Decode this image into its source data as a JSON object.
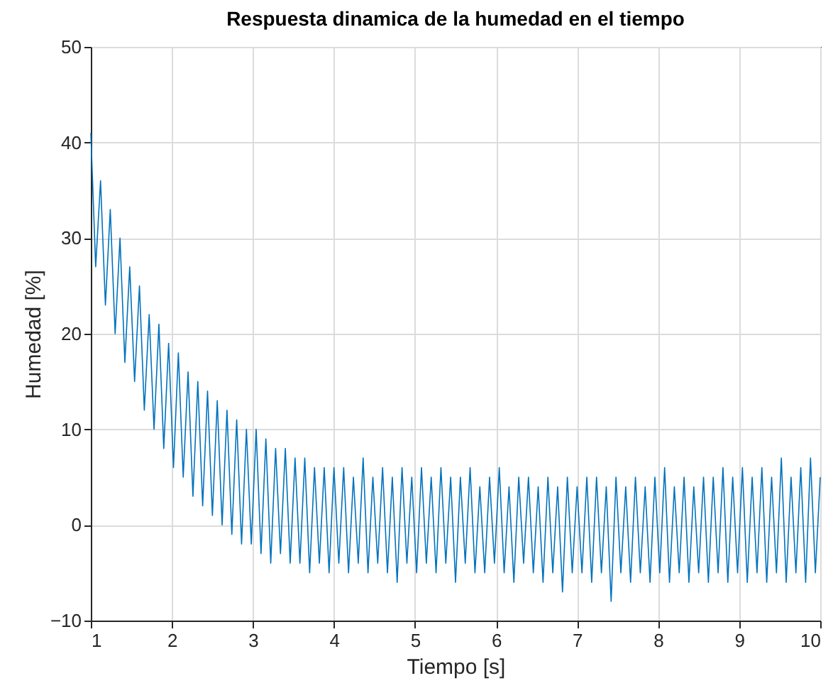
{
  "chart_data": {
    "type": "line",
    "title": "Respuesta dinamica de la humedad en el tiempo",
    "xlabel": "Tiempo [s]",
    "ylabel": "Humedad [%]",
    "color": "#0072bd",
    "grid": true,
    "xlim": [
      1,
      10
    ],
    "ylim": [
      -10,
      50
    ],
    "xticks": [
      1,
      2,
      3,
      4,
      5,
      6,
      7,
      8,
      9,
      10
    ],
    "yticks": [
      -10,
      0,
      10,
      20,
      30,
      40,
      50
    ],
    "x": [
      1.0,
      1.06,
      1.12,
      1.18,
      1.24,
      1.3,
      1.36,
      1.42,
      1.48,
      1.54,
      1.6,
      1.66,
      1.72,
      1.78,
      1.84,
      1.9,
      1.96,
      2.02,
      2.08,
      2.14,
      2.2,
      2.26,
      2.32,
      2.38,
      2.44,
      2.5,
      2.56,
      2.62,
      2.68,
      2.74,
      2.8,
      2.86,
      2.92,
      2.98,
      3.04,
      3.1,
      3.16,
      3.22,
      3.28,
      3.34,
      3.4,
      3.46,
      3.52,
      3.58,
      3.64,
      3.7,
      3.76,
      3.82,
      3.88,
      3.94,
      4.0,
      4.06,
      4.12,
      4.18,
      4.24,
      4.3,
      4.36,
      4.42,
      4.48,
      4.54,
      4.6,
      4.66,
      4.72,
      4.78,
      4.84,
      4.9,
      4.96,
      5.02,
      5.08,
      5.14,
      5.2,
      5.26,
      5.32,
      5.38,
      5.44,
      5.5,
      5.56,
      5.62,
      5.68,
      5.74,
      5.8,
      5.86,
      5.92,
      5.98,
      6.04,
      6.1,
      6.16,
      6.22,
      6.28,
      6.34,
      6.4,
      6.46,
      6.52,
      6.58,
      6.64,
      6.7,
      6.76,
      6.82,
      6.88,
      6.94,
      7.0,
      7.06,
      7.12,
      7.18,
      7.24,
      7.3,
      7.36,
      7.42,
      7.48,
      7.54,
      7.6,
      7.66,
      7.72,
      7.78,
      7.84,
      7.9,
      7.96,
      8.02,
      8.08,
      8.14,
      8.2,
      8.26,
      8.32,
      8.38,
      8.44,
      8.5,
      8.56,
      8.62,
      8.68,
      8.74,
      8.8,
      8.86,
      8.92,
      8.98,
      9.04,
      9.1,
      9.16,
      9.22,
      9.28,
      9.34,
      9.4,
      9.46,
      9.52,
      9.58,
      9.64,
      9.7,
      9.76,
      9.82,
      9.88,
      9.94,
      10.0
    ],
    "values": [
      41,
      27,
      36,
      23,
      33,
      20,
      30,
      17,
      27,
      15,
      25,
      12,
      22,
      10,
      21,
      8,
      19,
      6,
      18,
      5,
      16,
      3,
      15,
      2,
      14,
      1,
      13,
      0,
      12,
      -1,
      11,
      -2,
      10,
      -2,
      10,
      -3,
      9,
      -4,
      8,
      -3,
      8,
      -4,
      7,
      -4,
      7,
      -5,
      6,
      -4,
      6,
      -5,
      6,
      -4,
      6,
      -5,
      5,
      -4,
      7,
      -5,
      5,
      -4,
      6,
      -5,
      5,
      -6,
      6,
      -4,
      5,
      -5,
      6,
      -4,
      5,
      -5,
      6,
      -4,
      5,
      -6,
      5,
      -4,
      6,
      -5,
      4,
      -5,
      5,
      -4,
      6,
      -5,
      4,
      -6,
      5,
      -4,
      5,
      -5,
      4,
      -6,
      5,
      -5,
      4,
      -7,
      5,
      -5,
      4,
      -5,
      5,
      -6,
      5,
      -5,
      4,
      -8,
      5,
      -5,
      4,
      -6,
      5,
      -5,
      4,
      -6,
      5,
      -5,
      6,
      -6,
      4,
      -5,
      5,
      -6,
      4,
      -5,
      5,
      -6,
      5,
      -5,
      6,
      -6,
      5,
      -5,
      6,
      -6,
      5,
      -5,
      6,
      -6,
      5,
      -5,
      7,
      -6,
      5,
      -5,
      6,
      -6,
      7,
      -5,
      5
    ]
  }
}
